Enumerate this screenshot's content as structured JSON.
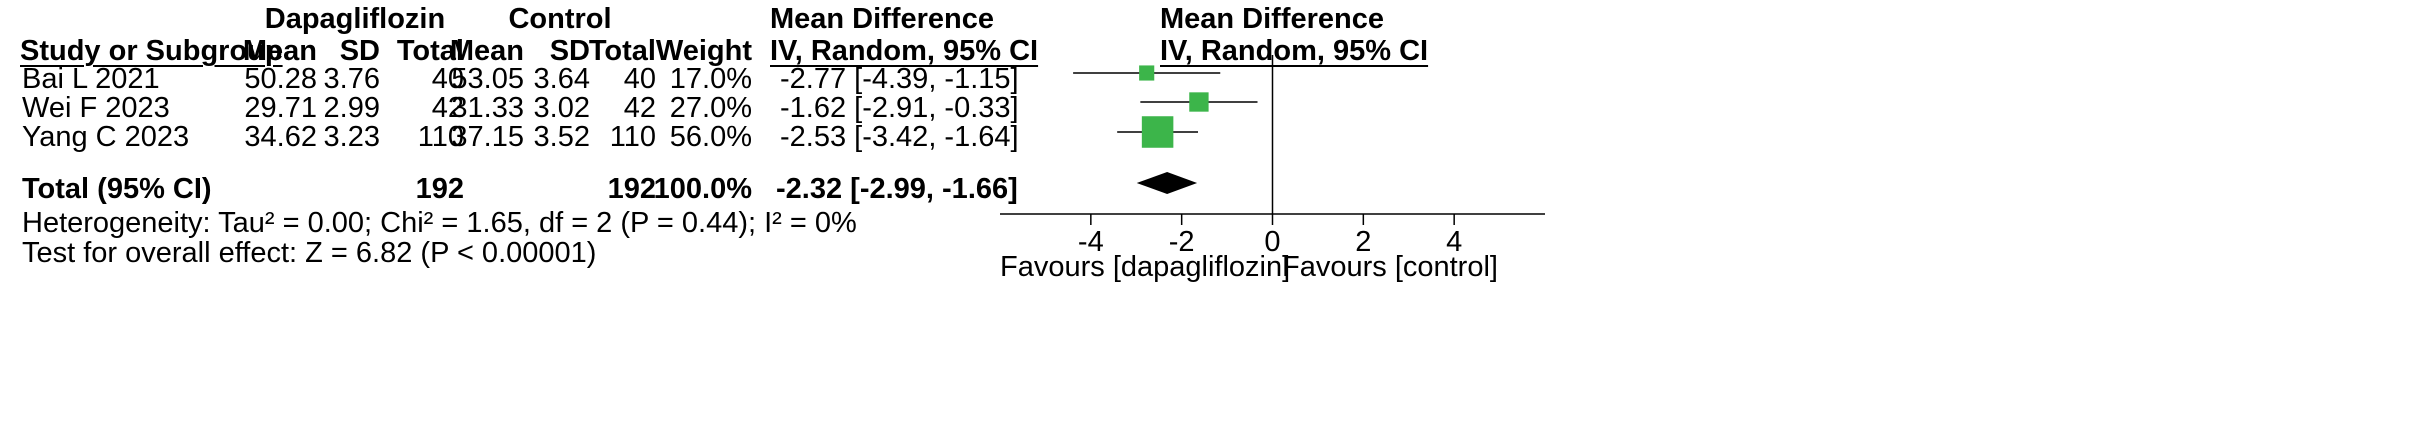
{
  "chart_data": {
    "type": "forest",
    "group_headers": {
      "experimental": "Dapagliflozin",
      "control": "Control"
    },
    "columns": {
      "study": "Study or Subgroup",
      "mean": "Mean",
      "sd": "SD",
      "total": "Total",
      "weight": "Weight",
      "effect_title": "Mean Difference",
      "effect_subtitle": "IV, Random, 95% CI"
    },
    "studies": [
      {
        "name": "Bai L 2021",
        "exp_mean": "50.28",
        "exp_sd": "3.76",
        "exp_total": "40",
        "ctrl_mean": "53.05",
        "ctrl_sd": "3.64",
        "ctrl_total": "40",
        "weight": "17.0%",
        "ci_text": "-2.77 [-4.39, -1.15]",
        "md": -2.77,
        "lo": -4.39,
        "hi": -1.15,
        "w": 17.0
      },
      {
        "name": "Wei F 2023",
        "exp_mean": "29.71",
        "exp_sd": "2.99",
        "exp_total": "42",
        "ctrl_mean": "31.33",
        "ctrl_sd": "3.02",
        "ctrl_total": "42",
        "weight": "27.0%",
        "ci_text": "-1.62 [-2.91, -0.33]",
        "md": -1.62,
        "lo": -2.91,
        "hi": -0.33,
        "w": 27.0
      },
      {
        "name": "Yang C 2023",
        "exp_mean": "34.62",
        "exp_sd": "3.23",
        "exp_total": "110",
        "ctrl_mean": "37.15",
        "ctrl_sd": "3.52",
        "ctrl_total": "110",
        "weight": "56.0%",
        "ci_text": "-2.53 [-3.42, -1.64]",
        "md": -2.53,
        "lo": -3.42,
        "hi": -1.64,
        "w": 56.0
      }
    ],
    "total": {
      "label": "Total (95% CI)",
      "exp_total": "192",
      "ctrl_total": "192",
      "weight": "100.0%",
      "ci_text": "-2.32 [-2.99, -1.66]",
      "md": -2.32,
      "lo": -2.99,
      "hi": -1.66
    },
    "heterogeneity": "Heterogeneity: Tau² = 0.00; Chi² = 1.65, df = 2 (P = 0.44); I² = 0%",
    "overall_effect": "Test for overall effect: Z = 6.82 (P < 0.00001)",
    "xlim": [
      -6,
      6
    ],
    "xticks": [
      -4,
      -2,
      0,
      2,
      4
    ],
    "favours_left": "Favours [dapagliflozin]",
    "favours_right": "Favours [control]",
    "colors": {
      "study_marker": "#3cb54a",
      "diamond": "#000000",
      "lines": "#000000"
    }
  }
}
